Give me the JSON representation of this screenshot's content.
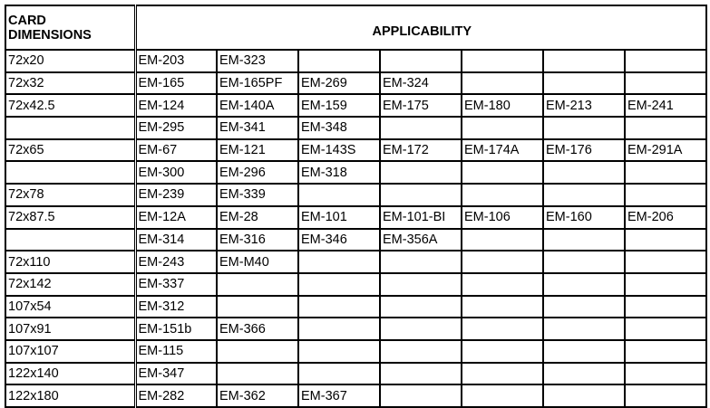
{
  "header": {
    "dimensions_line1": "CARD",
    "dimensions_line2": "DIMENSIONS",
    "applicability": "APPLICABILITY"
  },
  "rows": [
    {
      "dim": "72x20",
      "models": [
        "EM-203",
        "EM-323",
        "",
        "",
        "",
        "",
        ""
      ]
    },
    {
      "dim": "72x32",
      "models": [
        "EM-165",
        "EM-165PF",
        "EM-269",
        "EM-324",
        "",
        "",
        ""
      ]
    },
    {
      "dim": "72x42.5",
      "models": [
        "EM-124",
        "EM-140A",
        "EM-159",
        "EM-175",
        "EM-180",
        "EM-213",
        "EM-241"
      ]
    },
    {
      "dim": "",
      "models": [
        "EM-295",
        "EM-341",
        "EM-348",
        "",
        "",
        "",
        ""
      ]
    },
    {
      "dim": "72x65",
      "models": [
        "EM-67",
        "EM-121",
        "EM-143S",
        "EM-172",
        "EM-174A",
        "EM-176",
        "EM-291A"
      ]
    },
    {
      "dim": "",
      "models": [
        "EM-300",
        "EM-296",
        "EM-318",
        "",
        "",
        "",
        ""
      ]
    },
    {
      "dim": "72x78",
      "models": [
        "EM-239",
        "EM-339",
        "",
        "",
        "",
        "",
        ""
      ]
    },
    {
      "dim": "72x87.5",
      "models": [
        "EM-12A",
        "EM-28",
        "EM-101",
        "EM-101-BI",
        "EM-106",
        "EM-160",
        "EM-206"
      ]
    },
    {
      "dim": "",
      "models": [
        "EM-314",
        "EM-316",
        "EM-346",
        "EM-356A",
        "",
        "",
        ""
      ]
    },
    {
      "dim": "72x110",
      "models": [
        "EM-243",
        "EM-M40",
        "",
        "",
        "",
        "",
        ""
      ]
    },
    {
      "dim": "72x142",
      "models": [
        "EM-337",
        "",
        "",
        "",
        "",
        "",
        ""
      ]
    },
    {
      "dim": "107x54",
      "models": [
        "EM-312",
        "",
        "",
        "",
        "",
        "",
        ""
      ]
    },
    {
      "dim": "107x91",
      "models": [
        "EM-151b",
        "EM-366",
        "",
        "",
        "",
        "",
        ""
      ]
    },
    {
      "dim": "107x107",
      "models": [
        "EM-115",
        "",
        "",
        "",
        "",
        "",
        ""
      ]
    },
    {
      "dim": "122x140",
      "models": [
        "EM-347",
        "",
        "",
        "",
        "",
        "",
        ""
      ]
    },
    {
      "dim": "122x180",
      "models": [
        "EM-282",
        "EM-362",
        "EM-367",
        "",
        "",
        "",
        ""
      ]
    }
  ]
}
